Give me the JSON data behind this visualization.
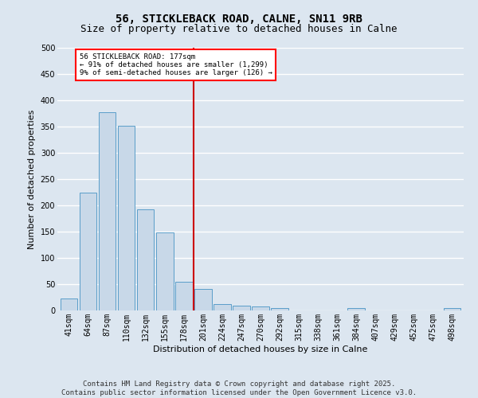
{
  "title": "56, STICKLEBACK ROAD, CALNE, SN11 9RB",
  "subtitle": "Size of property relative to detached houses in Calne",
  "xlabel": "Distribution of detached houses by size in Calne",
  "ylabel": "Number of detached properties",
  "categories": [
    "41sqm",
    "64sqm",
    "87sqm",
    "110sqm",
    "132sqm",
    "155sqm",
    "178sqm",
    "201sqm",
    "224sqm",
    "247sqm",
    "270sqm",
    "292sqm",
    "315sqm",
    "338sqm",
    "361sqm",
    "384sqm",
    "407sqm",
    "429sqm",
    "452sqm",
    "475sqm",
    "498sqm"
  ],
  "values": [
    23,
    224,
    378,
    352,
    193,
    148,
    55,
    41,
    12,
    9,
    7,
    4,
    0,
    0,
    0,
    4,
    0,
    0,
    0,
    0,
    4
  ],
  "bar_color": "#c8d8e8",
  "bar_edge_color": "#5a9ec9",
  "ylim": [
    0,
    500
  ],
  "yticks": [
    0,
    50,
    100,
    150,
    200,
    250,
    300,
    350,
    400,
    450,
    500
  ],
  "vline_x": 6.5,
  "vline_color": "#cc0000",
  "annotation_title": "56 STICKLEBACK ROAD: 177sqm",
  "annotation_line1": "← 91% of detached houses are smaller (1,299)",
  "annotation_line2": "9% of semi-detached houses are larger (126) →",
  "footer_line1": "Contains HM Land Registry data © Crown copyright and database right 2025.",
  "footer_line2": "Contains public sector information licensed under the Open Government Licence v3.0.",
  "background_color": "#dce6f0",
  "plot_bg_color": "#dce6f0",
  "grid_color": "#ffffff",
  "title_fontsize": 10,
  "subtitle_fontsize": 9,
  "axis_label_fontsize": 8,
  "tick_fontsize": 7,
  "footer_fontsize": 6.5
}
